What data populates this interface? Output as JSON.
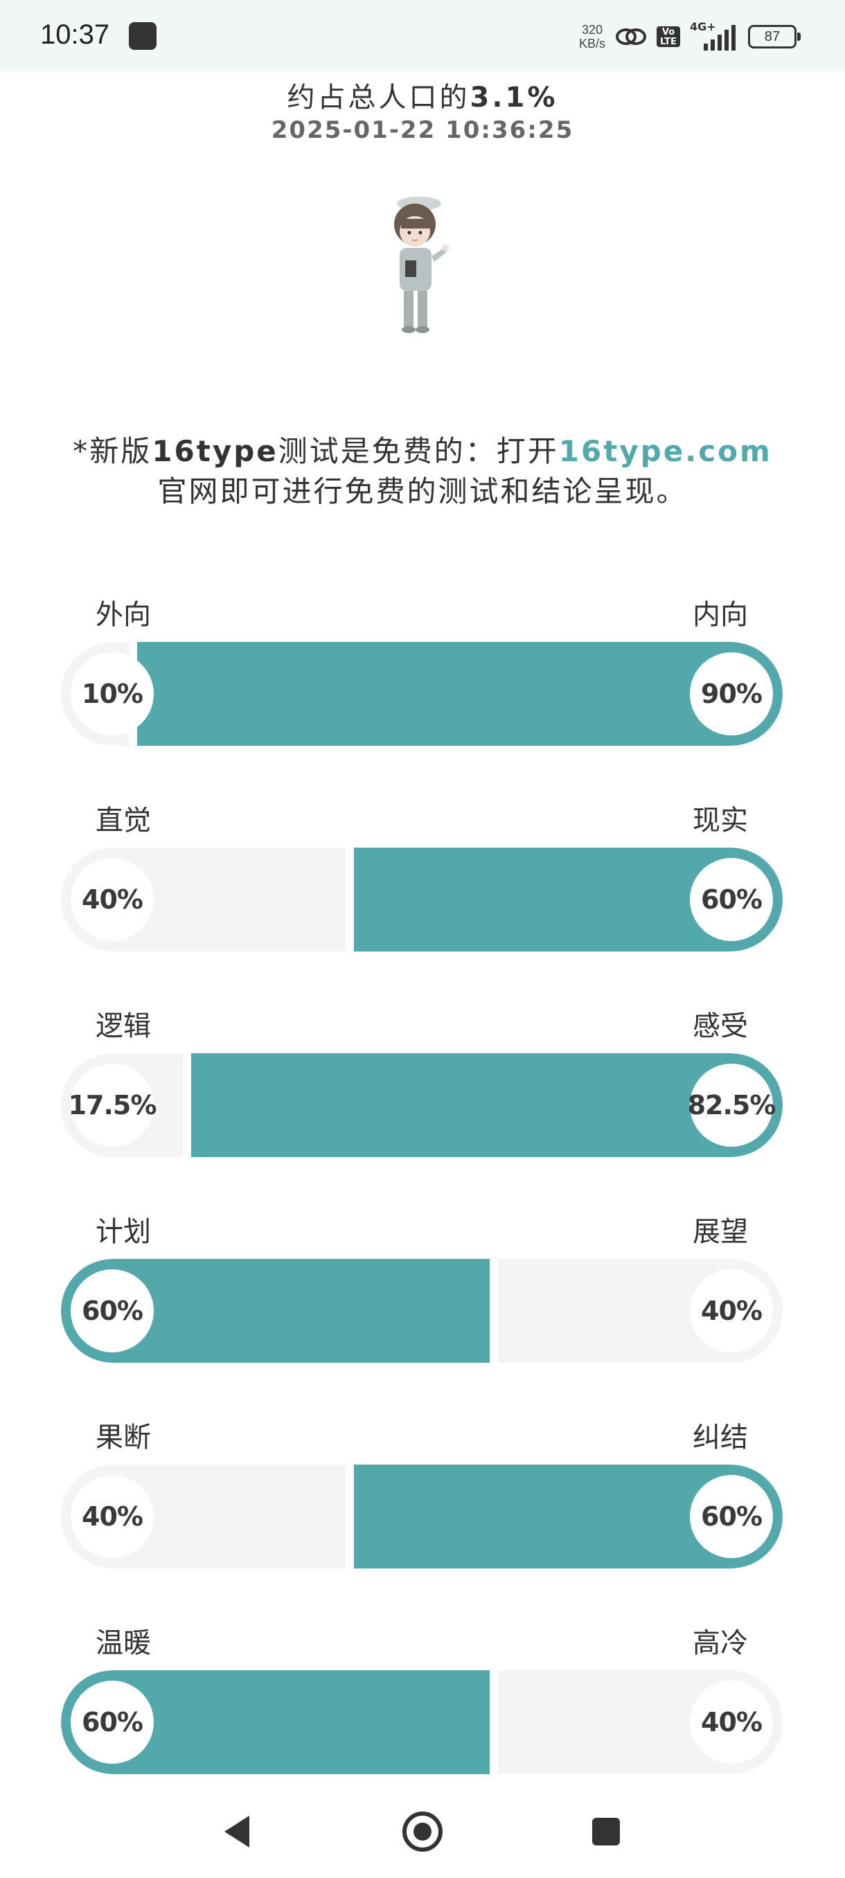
{
  "status_bar": {
    "time": "10:37",
    "net_speed_value": "320",
    "net_speed_unit": "KB/s",
    "volte": "Vo LTE",
    "network": "4G+",
    "battery": "87"
  },
  "result": {
    "population_prefix": "约占总人口的",
    "population_percent": "3.1%",
    "timestamp": "2025-01-22 10:36:25"
  },
  "note": {
    "line1_a": "*新版",
    "line1_b": "16type",
    "line1_c": "测试是免费的：打开",
    "line1_link": "16type.com",
    "line2": "官网即可进行免费的测试和结论呈现。"
  },
  "traits": [
    {
      "left_label": "外向",
      "right_label": "内向",
      "left_pct": "10%",
      "right_pct": "90%",
      "left_value": 10,
      "right_value": 90,
      "dominant": "right"
    },
    {
      "left_label": "直觉",
      "right_label": "现实",
      "left_pct": "40%",
      "right_pct": "60%",
      "left_value": 40,
      "right_value": 60,
      "dominant": "right"
    },
    {
      "left_label": "逻辑",
      "right_label": "感受",
      "left_pct": "17.5%",
      "right_pct": "82.5%",
      "left_value": 17.5,
      "right_value": 82.5,
      "dominant": "right"
    },
    {
      "left_label": "计划",
      "right_label": "展望",
      "left_pct": "60%",
      "right_pct": "40%",
      "left_value": 60,
      "right_value": 40,
      "dominant": "left"
    },
    {
      "left_label": "果断",
      "right_label": "纠结",
      "left_pct": "40%",
      "right_pct": "60%",
      "left_value": 40,
      "right_value": 60,
      "dominant": "right"
    },
    {
      "left_label": "温暖",
      "right_label": "高冷",
      "left_pct": "60%",
      "right_pct": "40%",
      "left_value": 60,
      "right_value": 40,
      "dominant": "left"
    }
  ],
  "colors": {
    "accent": "#52a8aa",
    "track": "#f4f4f4"
  },
  "nav": {
    "back_icon": "back-triangle-icon",
    "home_icon": "home-circle-icon",
    "recents_icon": "recents-square-icon"
  }
}
